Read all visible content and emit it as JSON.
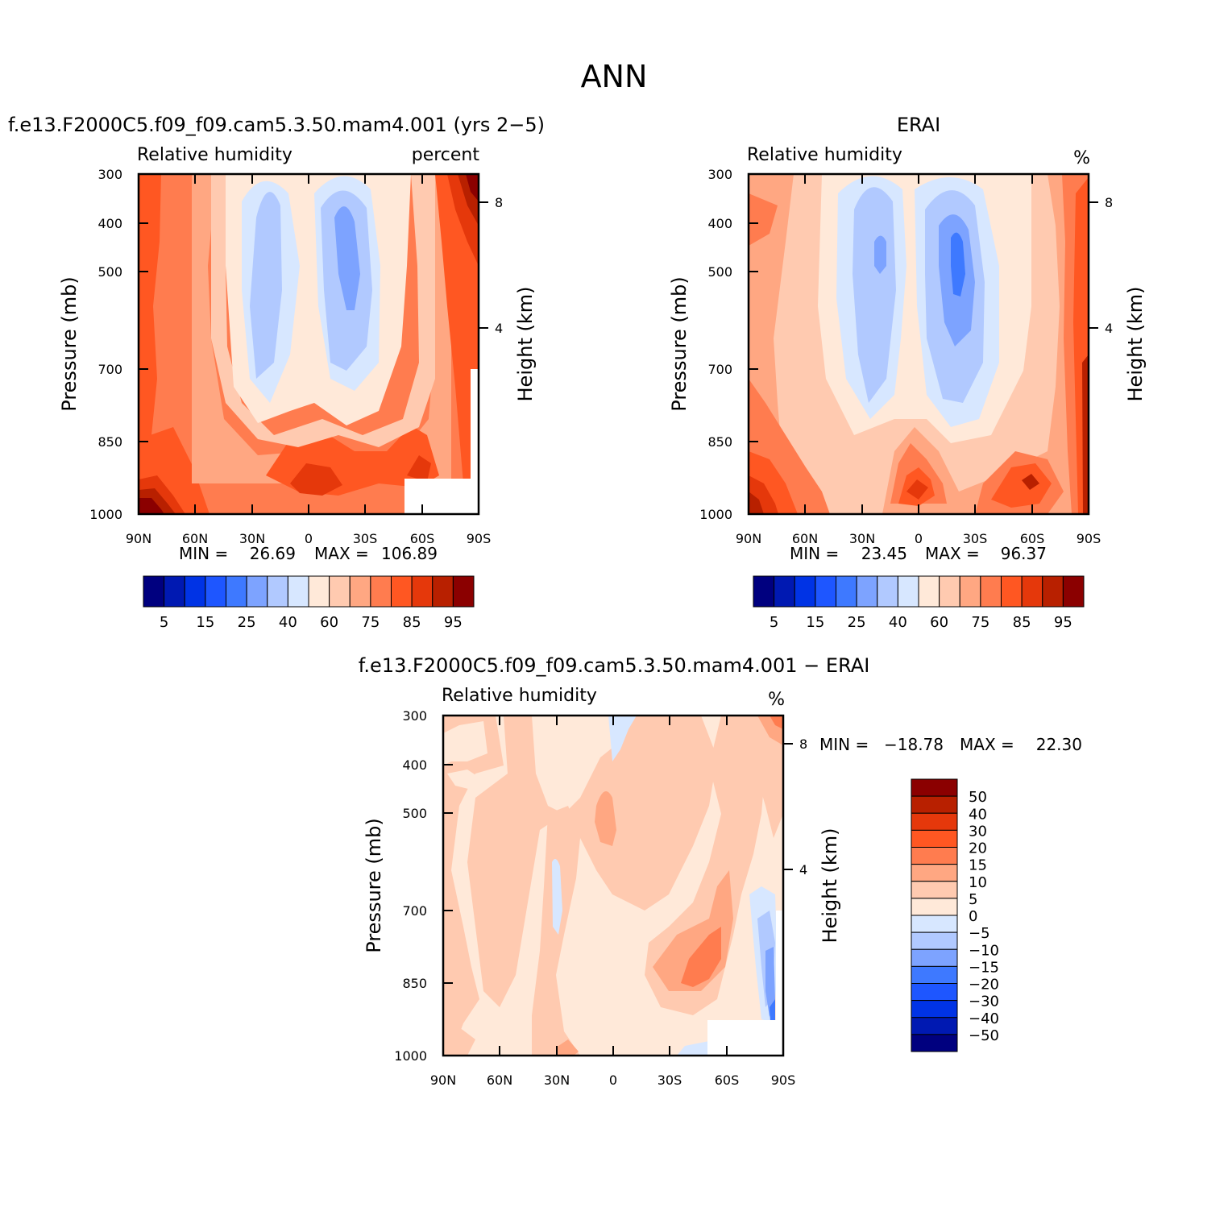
{
  "figure_title": "ANN",
  "colors": {
    "abs_scale": [
      "#00007f",
      "#0019b2",
      "#0033e5",
      "#1e56ff",
      "#3e79ff",
      "#7da3ff",
      "#b1c9ff",
      "#d7e7ff",
      "#ffe9d9",
      "#ffcab0",
      "#ffa782",
      "#ff7c4f",
      "#ff5722",
      "#e5380b",
      "#b82000",
      "#8b0000"
    ],
    "diff_scale": [
      "#8b0000",
      "#b82000",
      "#e5380b",
      "#ff5722",
      "#ff7c4f",
      "#ffa782",
      "#ffcab0",
      "#ffe9d9",
      "#d7e7ff",
      "#b1c9ff",
      "#7da3ff",
      "#3e79ff",
      "#1e56ff",
      "#0033e5",
      "#0019b2",
      "#00007f"
    ]
  },
  "chart_data": [
    {
      "type": "heatmap",
      "case_title": "f.e13.F2000C5.f09_f09.cam5.3.50.mam4.001 (yrs 2−5)",
      "var_label": "Relative humidity",
      "units": "percent",
      "ylabel": "Pressure (mb)",
      "y2label": "Height (km)",
      "x_ticks": [
        "90N",
        "60N",
        "30N",
        "0",
        "30S",
        "60S",
        "90S"
      ],
      "y_ticks": [
        "300",
        "400",
        "500",
        "700",
        "850",
        "1000"
      ],
      "y2_ticks": [
        "8",
        "4"
      ],
      "min_label": "MIN =",
      "min_value": "26.69",
      "max_label": "MAX =",
      "max_value": "106.89",
      "legend_labels": [
        "5",
        "15",
        "25",
        "40",
        "60",
        "75",
        "85",
        "95"
      ]
    },
    {
      "type": "heatmap",
      "case_title": "ERAI",
      "var_label": "Relative humidity",
      "units": "%",
      "ylabel": "Pressure (mb)",
      "y2label": "Height (km)",
      "x_ticks": [
        "90N",
        "60N",
        "30N",
        "0",
        "30S",
        "60S",
        "90S"
      ],
      "y_ticks": [
        "300",
        "400",
        "500",
        "700",
        "850",
        "1000"
      ],
      "y2_ticks": [
        "8",
        "4"
      ],
      "min_label": "MIN =",
      "min_value": "23.45",
      "max_label": "MAX =",
      "max_value": "96.37",
      "legend_labels": [
        "5",
        "15",
        "25",
        "40",
        "60",
        "75",
        "85",
        "95"
      ]
    },
    {
      "type": "heatmap",
      "case_title": "f.e13.F2000C5.f09_f09.cam5.3.50.mam4.001 − ERAI",
      "var_label": "Relative humidity",
      "units": "%",
      "ylabel": "Pressure (mb)",
      "y2label": "Height (km)",
      "x_ticks": [
        "90N",
        "60N",
        "30N",
        "0",
        "30S",
        "60S",
        "90S"
      ],
      "y_ticks": [
        "300",
        "400",
        "500",
        "700",
        "850",
        "1000"
      ],
      "y2_ticks": [
        "8",
        "4"
      ],
      "min_label": "MIN =",
      "min_value": "−18.78",
      "max_label": "MAX =",
      "max_value": "22.30",
      "legend_labels": [
        "50",
        "40",
        "30",
        "20",
        "15",
        "10",
        "5",
        "0",
        "−5",
        "−10",
        "−15",
        "−20",
        "−30",
        "−40",
        "−50"
      ]
    }
  ]
}
